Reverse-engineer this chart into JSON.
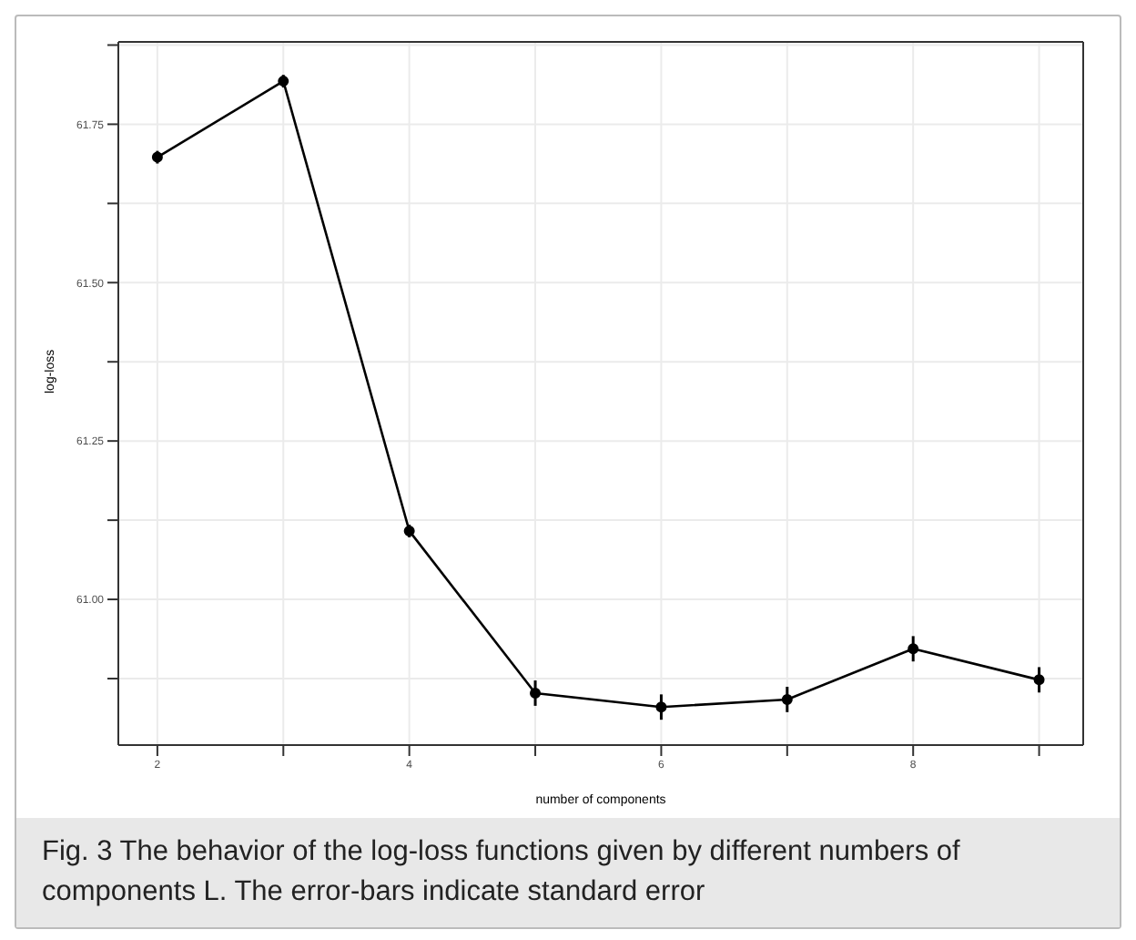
{
  "chart_data": {
    "type": "line",
    "xlabel": "number of components",
    "ylabel": "log-loss",
    "x": [
      2,
      3,
      4,
      5,
      6,
      7,
      8,
      9
    ],
    "series": [
      {
        "color": "#000000",
        "values": [
          61.698,
          61.818,
          61.108,
          60.852,
          60.83,
          60.842,
          60.922,
          60.873
        ],
        "errors": [
          0.01,
          0.01,
          0.01,
          0.02,
          0.02,
          0.02,
          0.02,
          0.02
        ]
      }
    ],
    "xlim": [
      1.69,
      9.35
    ],
    "xticks": [
      2,
      {
        "value": 3,
        "label": null
      },
      4,
      {
        "value": 5,
        "label": null
      },
      6,
      {
        "value": 7,
        "label": null
      },
      8,
      {
        "value": 9,
        "label": null
      }
    ],
    "ylim": [
      60.77,
      61.88
    ],
    "yticks": [
      {
        "value": 60.875,
        "label": null
      },
      {
        "value": 61,
        "label": "61.00"
      },
      {
        "value": 61.125,
        "label": null
      },
      {
        "value": 61.25,
        "label": "61.25"
      },
      {
        "value": 61.375,
        "label": null
      },
      {
        "value": 61.5,
        "label": "61.50"
      },
      {
        "value": 61.625,
        "label": null
      },
      {
        "value": 61.75,
        "label": "61.75"
      },
      {
        "value": 61.875,
        "label": null
      }
    ],
    "grid": true,
    "marker": "circle",
    "line_style": "solid",
    "annotations": [
      "Fig. 3 The behavior of the log-loss functions given by different numbers of components L. The error-bars indicate standard error"
    ]
  }
}
